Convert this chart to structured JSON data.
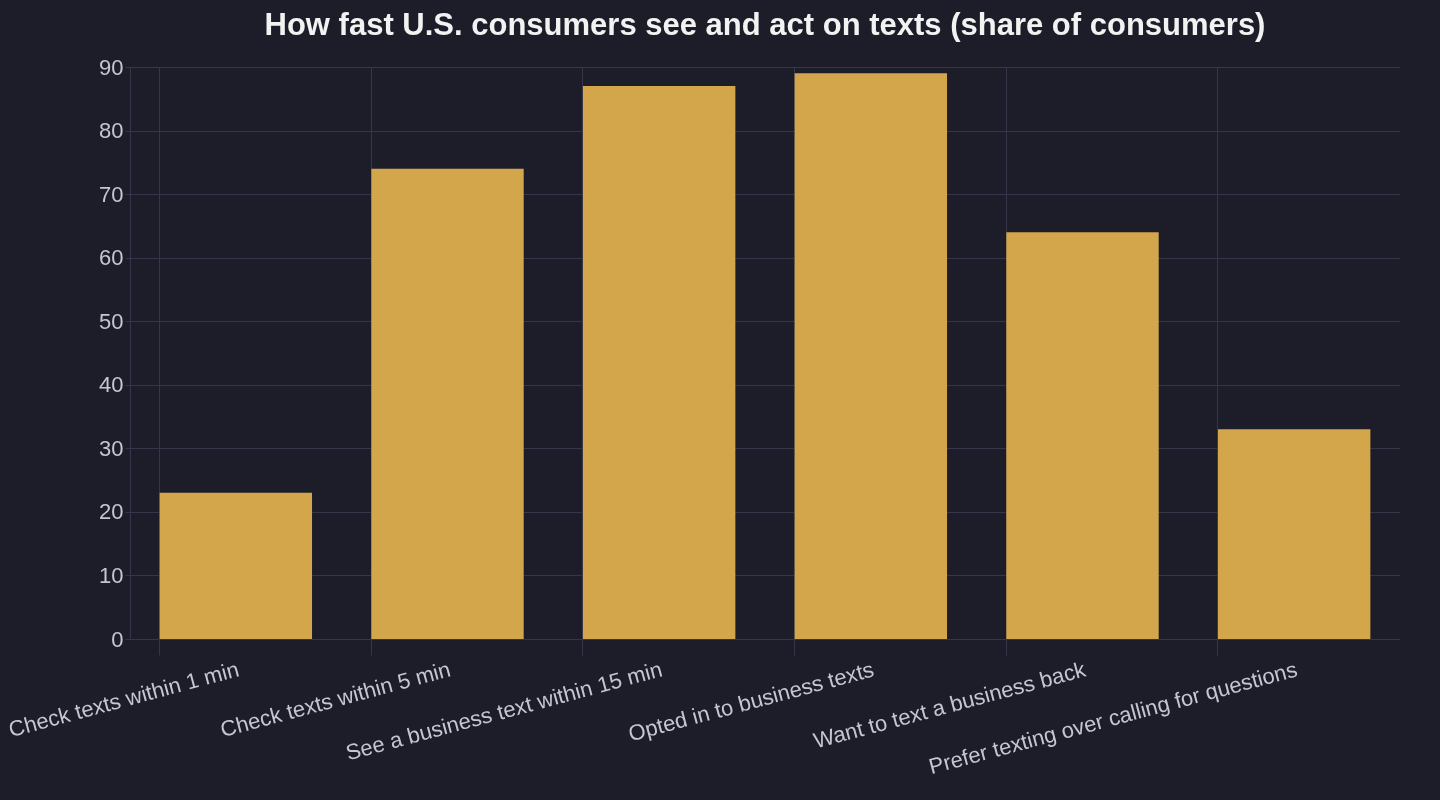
{
  "chart_data": {
    "type": "bar",
    "title": "How fast U.S. consumers see and act on texts (share of consumers)",
    "categories": [
      "Check texts within 1 min",
      "Check texts within 5 min",
      "See a business text within 15 min",
      "Opted in to business texts",
      "Want to text a business back",
      "Prefer texting over calling for questions"
    ],
    "values": [
      23,
      74,
      87,
      89,
      64,
      33
    ],
    "color": "#d4a64c",
    "ylim": [
      0,
      90
    ],
    "yticks": [
      0,
      10,
      20,
      30,
      40,
      50,
      60,
      70,
      80,
      90
    ],
    "grid": true
  }
}
